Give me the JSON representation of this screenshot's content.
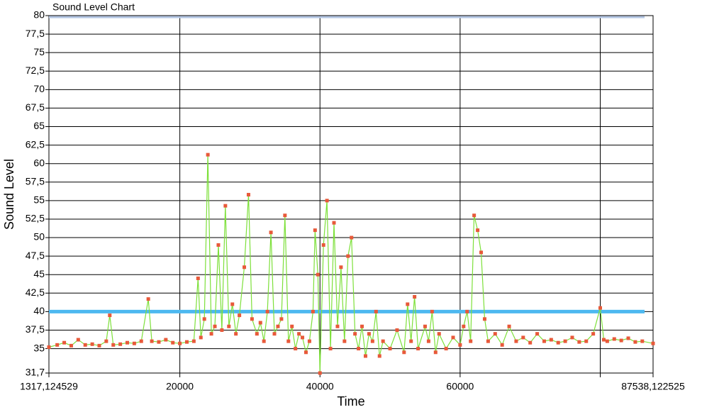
{
  "chart_data": {
    "type": "line",
    "title": "Sound Level Chart",
    "x_label": "Time",
    "y_label": "Sound Level",
    "xlim": [
      1317.124529,
      87538.122525
    ],
    "xticks": [
      {
        "value": 1317.124529,
        "label": "1317,124529"
      },
      20000,
      40000,
      60000,
      {
        "value": 80000,
        "label": null
      },
      {
        "value": 87538.122525,
        "label": "87538,122525"
      }
    ],
    "ylim": [
      31.7,
      80
    ],
    "yticks": [
      {
        "value": 31.7,
        "label": "31,7"
      },
      35,
      {
        "value": 37.5,
        "label": "37,5"
      },
      40,
      {
        "value": 42.5,
        "label": "42,5"
      },
      45,
      {
        "value": 47.5,
        "label": "47,5"
      },
      50,
      {
        "value": 52.5,
        "label": "52,5"
      },
      55,
      {
        "value": 57.5,
        "label": "57,5"
      },
      60,
      {
        "value": 62.5,
        "label": "62,5"
      },
      65,
      {
        "value": 67.5,
        "label": "67,5"
      },
      70,
      {
        "value": 72.5,
        "label": "72,5"
      },
      75,
      {
        "value": 77.5,
        "label": "77,5"
      },
      80
    ],
    "grid": true,
    "reference_lines": [
      {
        "value": 40,
        "color": "#4db8f0"
      },
      {
        "value": 79.8,
        "color": "#b4c6e4"
      }
    ],
    "series": [
      {
        "color": "#7de03a",
        "marker_color": "#e8593a",
        "x": [
          1317,
          2500,
          3500,
          4500,
          5500,
          6500,
          7500,
          8500,
          9500,
          10000,
          10500,
          11500,
          12500,
          13500,
          14500,
          15500,
          16000,
          17000,
          18000,
          19000,
          20000,
          21000,
          22000,
          22600,
          23000,
          23500,
          24000,
          24500,
          25000,
          25500,
          26000,
          26500,
          27000,
          27500,
          28000,
          28500,
          29200,
          29800,
          30300,
          31000,
          31500,
          32000,
          32500,
          33000,
          33500,
          34000,
          34500,
          35000,
          35500,
          36000,
          36500,
          37000,
          37500,
          38000,
          38500,
          39000,
          39300,
          39700,
          40000,
          40500,
          41000,
          41500,
          42000,
          42500,
          43000,
          43500,
          44000,
          44500,
          45000,
          45500,
          46000,
          46500,
          47000,
          47500,
          48000,
          48500,
          49000,
          50000,
          51000,
          52000,
          52500,
          53000,
          53500,
          54000,
          55000,
          55500,
          56000,
          56500,
          57000,
          58000,
          59000,
          60000,
          60500,
          61000,
          61500,
          62000,
          62500,
          63000,
          63500,
          64000,
          65000,
          66000,
          67000,
          68000,
          69000,
          70000,
          71000,
          72000,
          73000,
          74000,
          75000,
          76000,
          77000,
          78000,
          79000,
          80000,
          80500,
          81000,
          82000,
          83000,
          84000,
          85000,
          86000,
          87538
        ],
        "values": [
          35.2,
          35.5,
          35.8,
          35.4,
          36.2,
          35.5,
          35.6,
          35.4,
          36,
          39.5,
          35.5,
          35.6,
          35.8,
          35.7,
          36,
          41.7,
          36,
          35.9,
          36.2,
          35.8,
          35.7,
          35.9,
          36,
          44.5,
          36.5,
          39,
          61.2,
          37,
          38,
          49,
          37.5,
          54.3,
          38,
          41,
          37,
          39.5,
          46,
          55.8,
          39,
          37,
          38.5,
          36,
          40,
          50.7,
          37,
          38,
          39,
          53,
          36,
          38,
          35,
          37,
          36.5,
          34.5,
          36,
          40,
          51,
          45,
          31.7,
          49,
          55,
          35,
          52,
          38,
          46,
          36,
          47.5,
          50,
          37,
          35,
          38,
          34,
          37,
          36,
          40,
          34,
          36,
          35,
          37.5,
          34.5,
          41,
          36,
          42,
          35,
          38,
          36,
          40,
          34.5,
          37,
          35,
          36.5,
          35.5,
          38,
          40,
          36,
          53,
          51,
          48,
          39,
          36,
          37,
          35.5,
          38,
          36,
          36.5,
          35.8,
          37,
          36,
          36.2,
          35.8,
          36,
          36.5,
          35.9,
          36,
          37,
          40.5,
          36.2,
          36,
          36.3,
          36.1,
          36.4,
          35.9,
          36,
          35.7
        ]
      }
    ]
  }
}
